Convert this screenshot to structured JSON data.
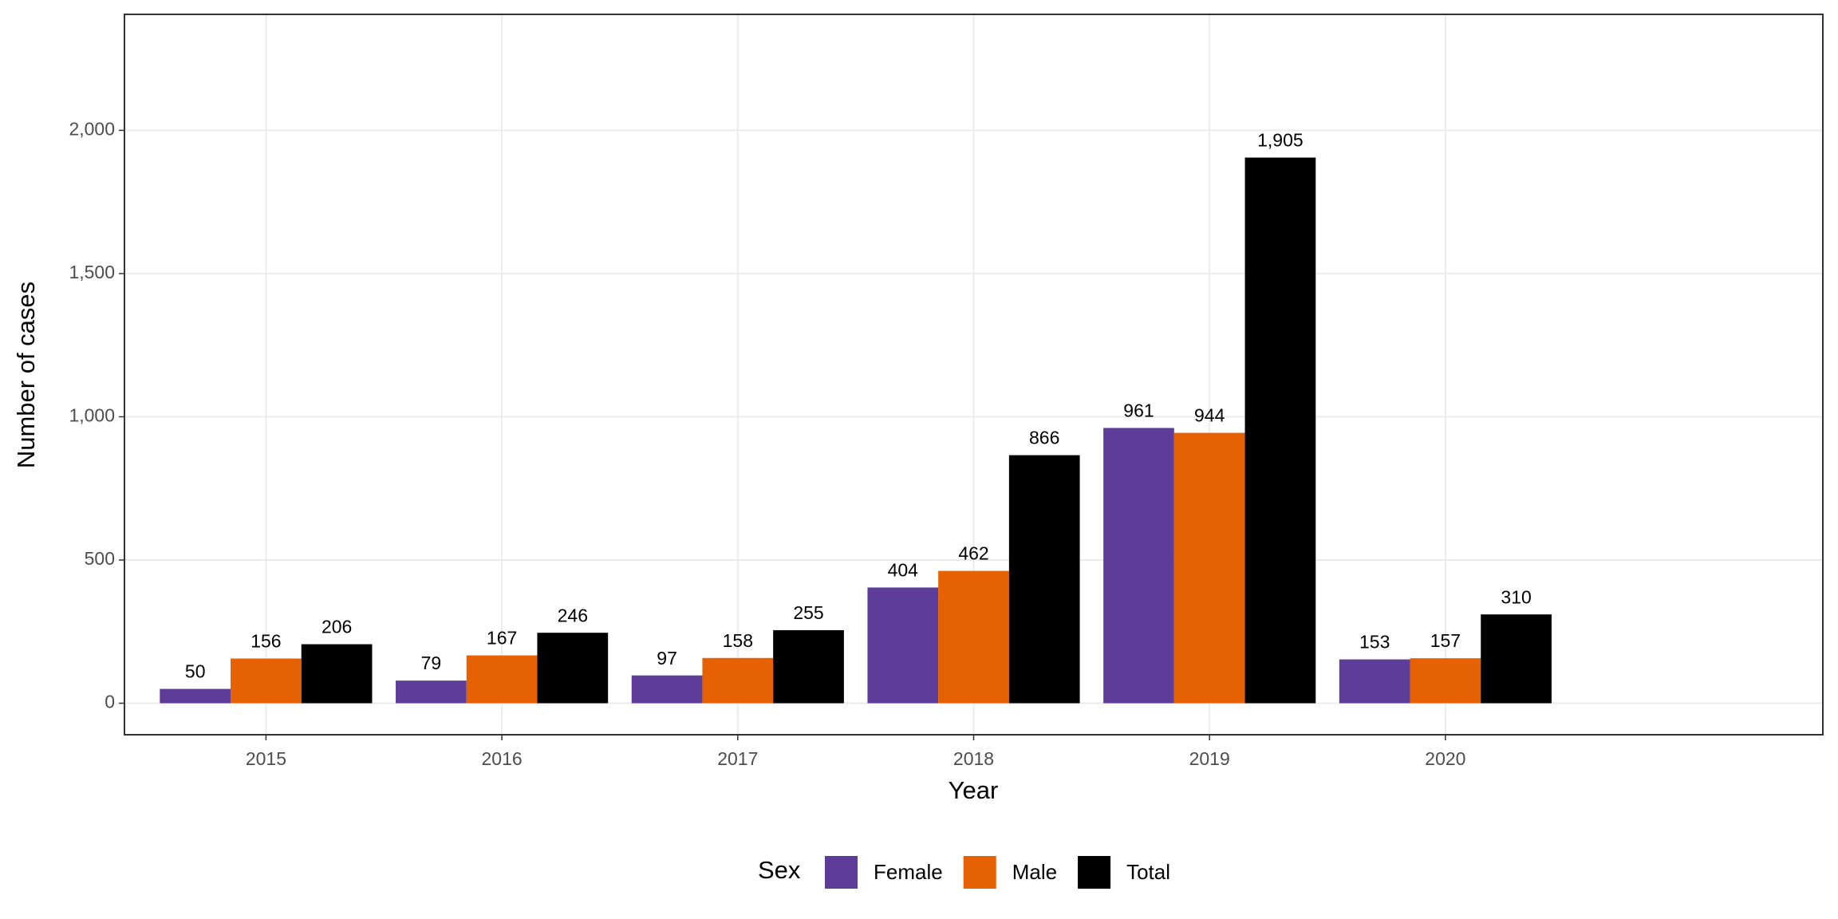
{
  "chart_data": {
    "type": "bar",
    "x_label": "Year",
    "y_label": "Number of cases",
    "legend_title": "Sex",
    "categories": [
      "2015",
      "2016",
      "2017",
      "2018",
      "2019",
      "2020"
    ],
    "series": [
      {
        "name": "Female",
        "color": "#5e3c99",
        "values": [
          50,
          79,
          97,
          404,
          961,
          153
        ]
      },
      {
        "name": "Male",
        "color": "#e66101",
        "values": [
          156,
          167,
          158,
          462,
          944,
          157
        ]
      },
      {
        "name": "Total",
        "color": "#000000",
        "values": [
          206,
          246,
          255,
          866,
          1905,
          310
        ],
        "value_labels": [
          "206",
          "246",
          "255",
          "866",
          "1,905",
          "310"
        ]
      }
    ],
    "ylim": [
      -110,
      2405
    ],
    "yticks": [
      0,
      500,
      {
        "value": 1000,
        "label": "1,000"
      },
      {
        "value": 1500,
        "label": "1,500"
      },
      {
        "value": 2000,
        "label": "2,000"
      }
    ],
    "grid": true,
    "legend_position": "bottom"
  }
}
